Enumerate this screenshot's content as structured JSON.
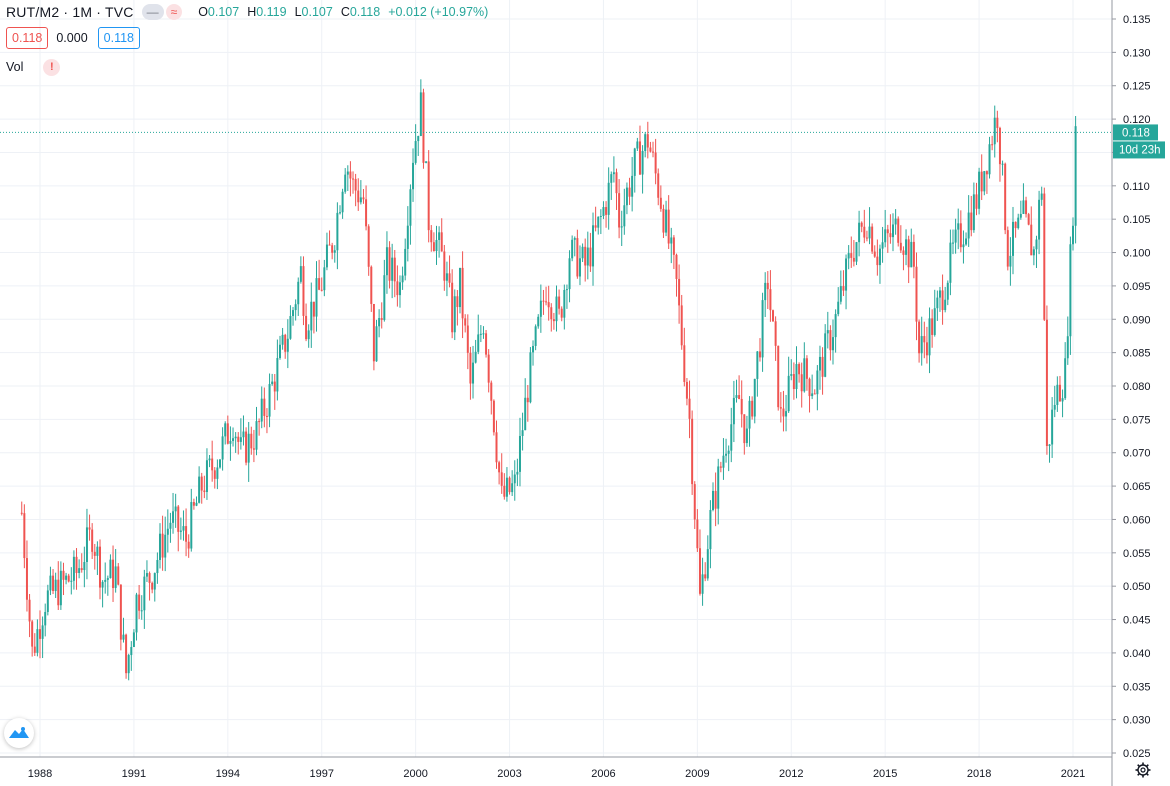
{
  "header": {
    "symbol": "RUT/M2 · 1M · TVC",
    "pill_left": "—",
    "pill_right": "≈",
    "ohlc": [
      {
        "k": "O",
        "v": "0.107"
      },
      {
        "k": "H",
        "v": "0.119"
      },
      {
        "k": "L",
        "v": "0.107"
      },
      {
        "k": "C",
        "v": "0.118"
      },
      {
        "k": "",
        "v": "+0.012 (+10.97%)"
      }
    ],
    "value_red": "0.118",
    "value_mid": "0.000",
    "value_blue": "0.118",
    "vol_label": "Vol",
    "warn_glyph": "!"
  },
  "price_axis": {
    "last_price": "0.118",
    "countdown": "10d 23h",
    "last_price_value": 0.118,
    "colors": {
      "up": "#26a69a",
      "down": "#ef5350",
      "grid": "#eef1f6",
      "axis_text": "#131722"
    }
  },
  "icons": {
    "logo": "tradingview-logo-icon",
    "settings": "gear-icon"
  },
  "chart_data": {
    "type": "candlestick",
    "title": "RUT/M2 · 1M · TVC",
    "ylim": [
      0.025,
      0.135
    ],
    "yticks": [
      "0.135",
      "0.130",
      "0.125",
      "0.120",
      "0.115",
      "0.110",
      "0.105",
      "0.100",
      "0.095",
      "0.090",
      "0.085",
      "0.080",
      "0.075",
      "0.070",
      "0.065",
      "0.060",
      "0.055",
      "0.050",
      "0.045",
      "0.040",
      "0.035",
      "0.030",
      "0.025"
    ],
    "xticks": [
      "1988",
      "1991",
      "1994",
      "1997",
      "2000",
      "2003",
      "2006",
      "2009",
      "2012",
      "2015",
      "2018",
      "2021"
    ],
    "xlim": [
      "1987-05",
      "2021-06"
    ],
    "grid": true,
    "series_closes": [
      [
        "1987-06",
        0.061
      ],
      [
        "1987-10",
        0.04
      ],
      [
        "1988-03",
        0.048
      ],
      [
        "1988-09",
        0.05
      ],
      [
        "1989-03",
        0.052
      ],
      [
        "1989-09",
        0.058
      ],
      [
        "1990-01",
        0.051
      ],
      [
        "1990-06",
        0.052
      ],
      [
        "1990-10",
        0.037
      ],
      [
        "1991-02",
        0.048
      ],
      [
        "1991-08",
        0.052
      ],
      [
        "1992-03",
        0.06
      ],
      [
        "1992-09",
        0.057
      ],
      [
        "1993-03",
        0.065
      ],
      [
        "1993-10",
        0.07
      ],
      [
        "1994-03",
        0.075
      ],
      [
        "1994-06",
        0.07
      ],
      [
        "1994-12",
        0.073
      ],
      [
        "1995-06",
        0.08
      ],
      [
        "1995-12",
        0.088
      ],
      [
        "1996-05",
        0.097
      ],
      [
        "1996-07",
        0.09
      ],
      [
        "1996-12",
        0.094
      ],
      [
        "1997-06",
        0.103
      ],
      [
        "1997-10",
        0.114
      ],
      [
        "1998-01",
        0.11
      ],
      [
        "1998-05",
        0.108
      ],
      [
        "1998-09",
        0.085
      ],
      [
        "1999-02",
        0.098
      ],
      [
        "1999-07",
        0.095
      ],
      [
        "1999-12",
        0.115
      ],
      [
        "2000-03",
        0.122
      ],
      [
        "2000-06",
        0.105
      ],
      [
        "2000-12",
        0.098
      ],
      [
        "2001-03",
        0.09
      ],
      [
        "2001-06",
        0.095
      ],
      [
        "2001-10",
        0.08
      ],
      [
        "2002-03",
        0.09
      ],
      [
        "2002-07",
        0.075
      ],
      [
        "2002-10",
        0.063
      ],
      [
        "2003-03",
        0.065
      ],
      [
        "2003-08",
        0.08
      ],
      [
        "2004-03",
        0.095
      ],
      [
        "2004-08",
        0.09
      ],
      [
        "2004-12",
        0.1
      ],
      [
        "2005-06",
        0.098
      ],
      [
        "2005-12",
        0.105
      ],
      [
        "2006-05",
        0.112
      ],
      [
        "2006-07",
        0.105
      ],
      [
        "2007-01",
        0.113
      ],
      [
        "2007-06",
        0.117
      ],
      [
        "2007-11",
        0.108
      ],
      [
        "2008-05",
        0.095
      ],
      [
        "2008-10",
        0.075
      ],
      [
        "2009-02",
        0.048
      ],
      [
        "2009-06",
        0.06
      ],
      [
        "2009-12",
        0.072
      ],
      [
        "2010-05",
        0.078
      ],
      [
        "2010-08",
        0.072
      ],
      [
        "2011-04",
        0.096
      ],
      [
        "2011-09",
        0.075
      ],
      [
        "2012-03",
        0.083
      ],
      [
        "2012-10",
        0.08
      ],
      [
        "2013-06",
        0.09
      ],
      [
        "2013-12",
        0.1
      ],
      [
        "2014-06",
        0.105
      ],
      [
        "2014-10",
        0.1
      ],
      [
        "2015-06",
        0.104
      ],
      [
        "2015-12",
        0.098
      ],
      [
        "2016-02",
        0.085
      ],
      [
        "2016-08",
        0.09
      ],
      [
        "2017-03",
        0.1
      ],
      [
        "2017-12",
        0.108
      ],
      [
        "2018-08",
        0.121
      ],
      [
        "2018-12",
        0.1
      ],
      [
        "2019-06",
        0.105
      ],
      [
        "2019-10",
        0.1
      ],
      [
        "2020-01",
        0.11
      ],
      [
        "2020-03",
        0.07
      ],
      [
        "2020-06",
        0.078
      ],
      [
        "2020-10",
        0.082
      ],
      [
        "2021-01",
        0.107
      ],
      [
        "2021-02",
        0.118
      ]
    ]
  }
}
